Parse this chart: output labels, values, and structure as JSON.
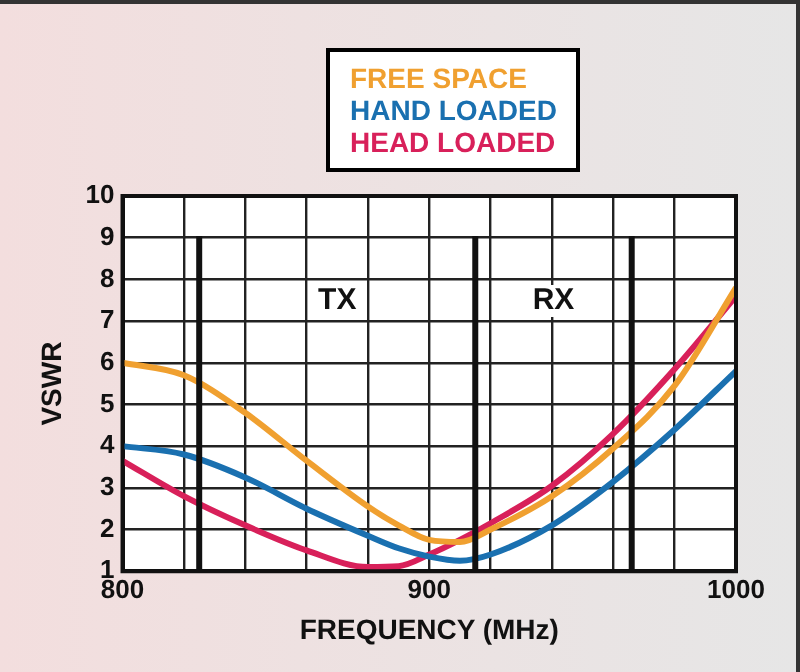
{
  "chart_data": {
    "type": "line",
    "xlabel": "FREQUENCY (MHz)",
    "ylabel": "VSWR",
    "x": [
      800,
      820,
      840,
      860,
      880,
      890,
      900,
      910,
      920,
      940,
      960,
      980,
      1000
    ],
    "series": [
      {
        "name": "FREE SPACE",
        "color": "#f0a030",
        "values": [
          6.0,
          5.7,
          4.8,
          3.65,
          2.55,
          2.1,
          1.75,
          1.7,
          2.0,
          2.8,
          3.95,
          5.45,
          7.8
        ]
      },
      {
        "name": "HAND LOADED",
        "color": "#1a70b0",
        "values": [
          4.0,
          3.8,
          3.25,
          2.5,
          1.85,
          1.55,
          1.35,
          1.25,
          1.4,
          2.1,
          3.15,
          4.4,
          5.8
        ]
      },
      {
        "name": "HEAD LOADED",
        "color": "#d8205a",
        "values": [
          3.65,
          2.8,
          2.1,
          1.5,
          1.1,
          1.12,
          1.4,
          1.75,
          2.15,
          3.05,
          4.3,
          5.85,
          7.6
        ]
      }
    ],
    "xlim": [
      800,
      1000
    ],
    "xticks": [
      800,
      {
        "value": 820,
        "label": null
      },
      {
        "value": 840,
        "label": null
      },
      {
        "value": 860,
        "label": null
      },
      {
        "value": 880,
        "label": null
      },
      900,
      {
        "value": 920,
        "label": null
      },
      {
        "value": 940,
        "label": null
      },
      {
        "value": 960,
        "label": null
      },
      {
        "value": 980,
        "label": null
      },
      1000
    ],
    "ylim": [
      1,
      10
    ],
    "yticks": [
      1,
      2,
      3,
      4,
      5,
      6,
      7,
      8,
      9,
      10
    ],
    "ref_lines": [
      {
        "axis": "x",
        "value": 825,
        "color": "#111111"
      },
      {
        "axis": "x",
        "value": 915,
        "color": "#111111"
      },
      {
        "axis": "x",
        "value": 966,
        "color": "#111111"
      }
    ],
    "annotations": [
      "TX",
      "RX"
    ],
    "grid": true,
    "legend": "top",
    "marker": "none",
    "line_style": "solid"
  }
}
